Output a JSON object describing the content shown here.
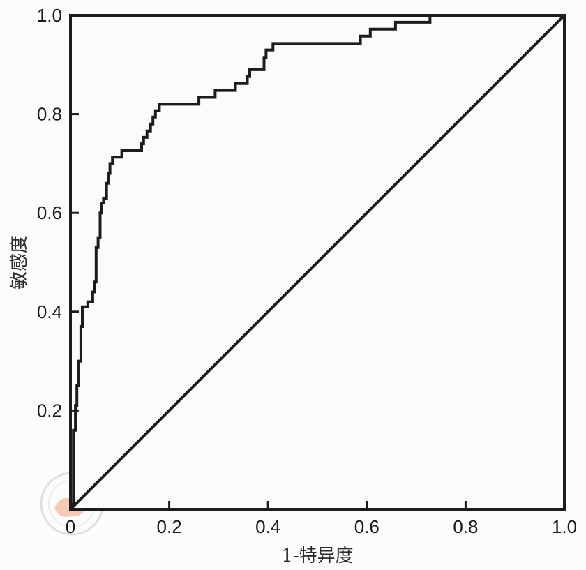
{
  "chart_data": {
    "type": "line",
    "xlabel": "1-特异度",
    "ylabel": "敏感度",
    "xlim": [
      0,
      1
    ],
    "ylim": [
      0,
      1
    ],
    "x_ticks": [
      "0",
      "0.2",
      "0.4",
      "0.6",
      "0.8",
      "1.0"
    ],
    "y_ticks": [
      "0.2",
      "0.4",
      "0.6",
      "0.8",
      "1.0"
    ],
    "grid": false,
    "legend": "none",
    "series": [
      {
        "values": [
          [
            0,
            0
          ],
          [
            0,
            0.01
          ],
          [
            0.006,
            0.01
          ],
          [
            0.006,
            0.16
          ],
          [
            0.01,
            0.16
          ],
          [
            0.01,
            0.21
          ],
          [
            0.013,
            0.21
          ],
          [
            0.013,
            0.25
          ],
          [
            0.017,
            0.25
          ],
          [
            0.017,
            0.3
          ],
          [
            0.021,
            0.3
          ],
          [
            0.021,
            0.37
          ],
          [
            0.024,
            0.37
          ],
          [
            0.024,
            0.41
          ],
          [
            0.035,
            0.41
          ],
          [
            0.035,
            0.42
          ],
          [
            0.045,
            0.42
          ],
          [
            0.045,
            0.44
          ],
          [
            0.048,
            0.44
          ],
          [
            0.048,
            0.46
          ],
          [
            0.052,
            0.46
          ],
          [
            0.052,
            0.53
          ],
          [
            0.056,
            0.53
          ],
          [
            0.056,
            0.55
          ],
          [
            0.06,
            0.55
          ],
          [
            0.06,
            0.6
          ],
          [
            0.063,
            0.6
          ],
          [
            0.063,
            0.62
          ],
          [
            0.067,
            0.62
          ],
          [
            0.067,
            0.63
          ],
          [
            0.073,
            0.63
          ],
          [
            0.073,
            0.66
          ],
          [
            0.077,
            0.66
          ],
          [
            0.077,
            0.68
          ],
          [
            0.08,
            0.68
          ],
          [
            0.08,
            0.7
          ],
          [
            0.085,
            0.7
          ],
          [
            0.085,
            0.713
          ],
          [
            0.104,
            0.713
          ],
          [
            0.104,
            0.726
          ],
          [
            0.144,
            0.726
          ],
          [
            0.144,
            0.74
          ],
          [
            0.148,
            0.74
          ],
          [
            0.148,
            0.753
          ],
          [
            0.155,
            0.753
          ],
          [
            0.155,
            0.766
          ],
          [
            0.162,
            0.766
          ],
          [
            0.162,
            0.78
          ],
          [
            0.167,
            0.78
          ],
          [
            0.167,
            0.794
          ],
          [
            0.172,
            0.794
          ],
          [
            0.172,
            0.807
          ],
          [
            0.18,
            0.807
          ],
          [
            0.18,
            0.82
          ],
          [
            0.26,
            0.82
          ],
          [
            0.26,
            0.834
          ],
          [
            0.293,
            0.834
          ],
          [
            0.293,
            0.848
          ],
          [
            0.334,
            0.848
          ],
          [
            0.334,
            0.862
          ],
          [
            0.358,
            0.862
          ],
          [
            0.358,
            0.876
          ],
          [
            0.363,
            0.876
          ],
          [
            0.363,
            0.89
          ],
          [
            0.392,
            0.89
          ],
          [
            0.392,
            0.915
          ],
          [
            0.396,
            0.915
          ],
          [
            0.396,
            0.93
          ],
          [
            0.41,
            0.93
          ],
          [
            0.41,
            0.943
          ],
          [
            0.587,
            0.943
          ],
          [
            0.587,
            0.958
          ],
          [
            0.607,
            0.958
          ],
          [
            0.607,
            0.972
          ],
          [
            0.658,
            0.972
          ],
          [
            0.658,
            0.986
          ],
          [
            0.728,
            0.986
          ],
          [
            0.728,
            1.0
          ],
          [
            1.0,
            1.0
          ]
        ]
      },
      {
        "values": [
          [
            0,
            0
          ],
          [
            1,
            1
          ]
        ]
      }
    ]
  }
}
